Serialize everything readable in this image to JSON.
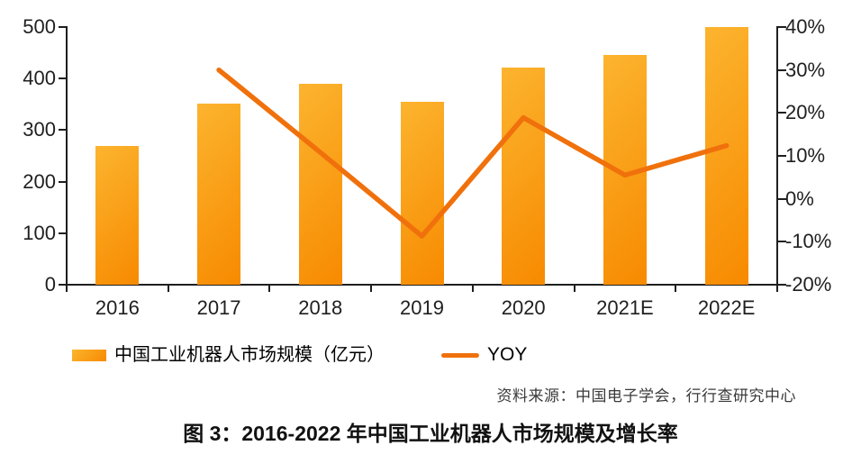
{
  "title": "图 3：2016-2022 年中国工业机器人市场规模及增长率",
  "source": "资料来源：中国电子学会，行行查研究中心",
  "legend": {
    "bar_label": "中国工业机器人市场规模（亿元）",
    "line_label": "YOY"
  },
  "colors": {
    "bar_gradient_start": "#FCB42F",
    "bar_gradient_end": "#F78A00",
    "line": "#F0710C",
    "axis": "#1F1F1F",
    "axis_text": "#1F1F1F",
    "source_text": "#3A3A3A",
    "title_text": "#111111"
  },
  "chart_data": {
    "type": "bar+line",
    "categories": [
      "2016",
      "2017",
      "2018",
      "2019",
      "2020",
      "2021E",
      "2022E"
    ],
    "series": [
      {
        "name": "中国工业机器人市场规模（亿元）",
        "type": "bar",
        "axis": "left",
        "unit": "亿元",
        "values": [
          270,
          351,
          389,
          355,
          422,
          445,
          500
        ]
      },
      {
        "name": "YOY",
        "type": "line",
        "axis": "right",
        "unit": "%",
        "values": [
          null,
          30,
          10.8,
          -8.7,
          18.9,
          5.5,
          12.4
        ]
      }
    ],
    "left_axis": {
      "min": 0,
      "max": 500,
      "ticks": [
        500,
        400,
        300,
        200,
        100,
        0
      ]
    },
    "right_axis": {
      "min": -20,
      "max": 40,
      "tick_labels": [
        "40%",
        "30%",
        "20%",
        "10%",
        "0%",
        "-10%",
        "-20%"
      ]
    },
    "grid": false,
    "legend_position": "bottom"
  }
}
